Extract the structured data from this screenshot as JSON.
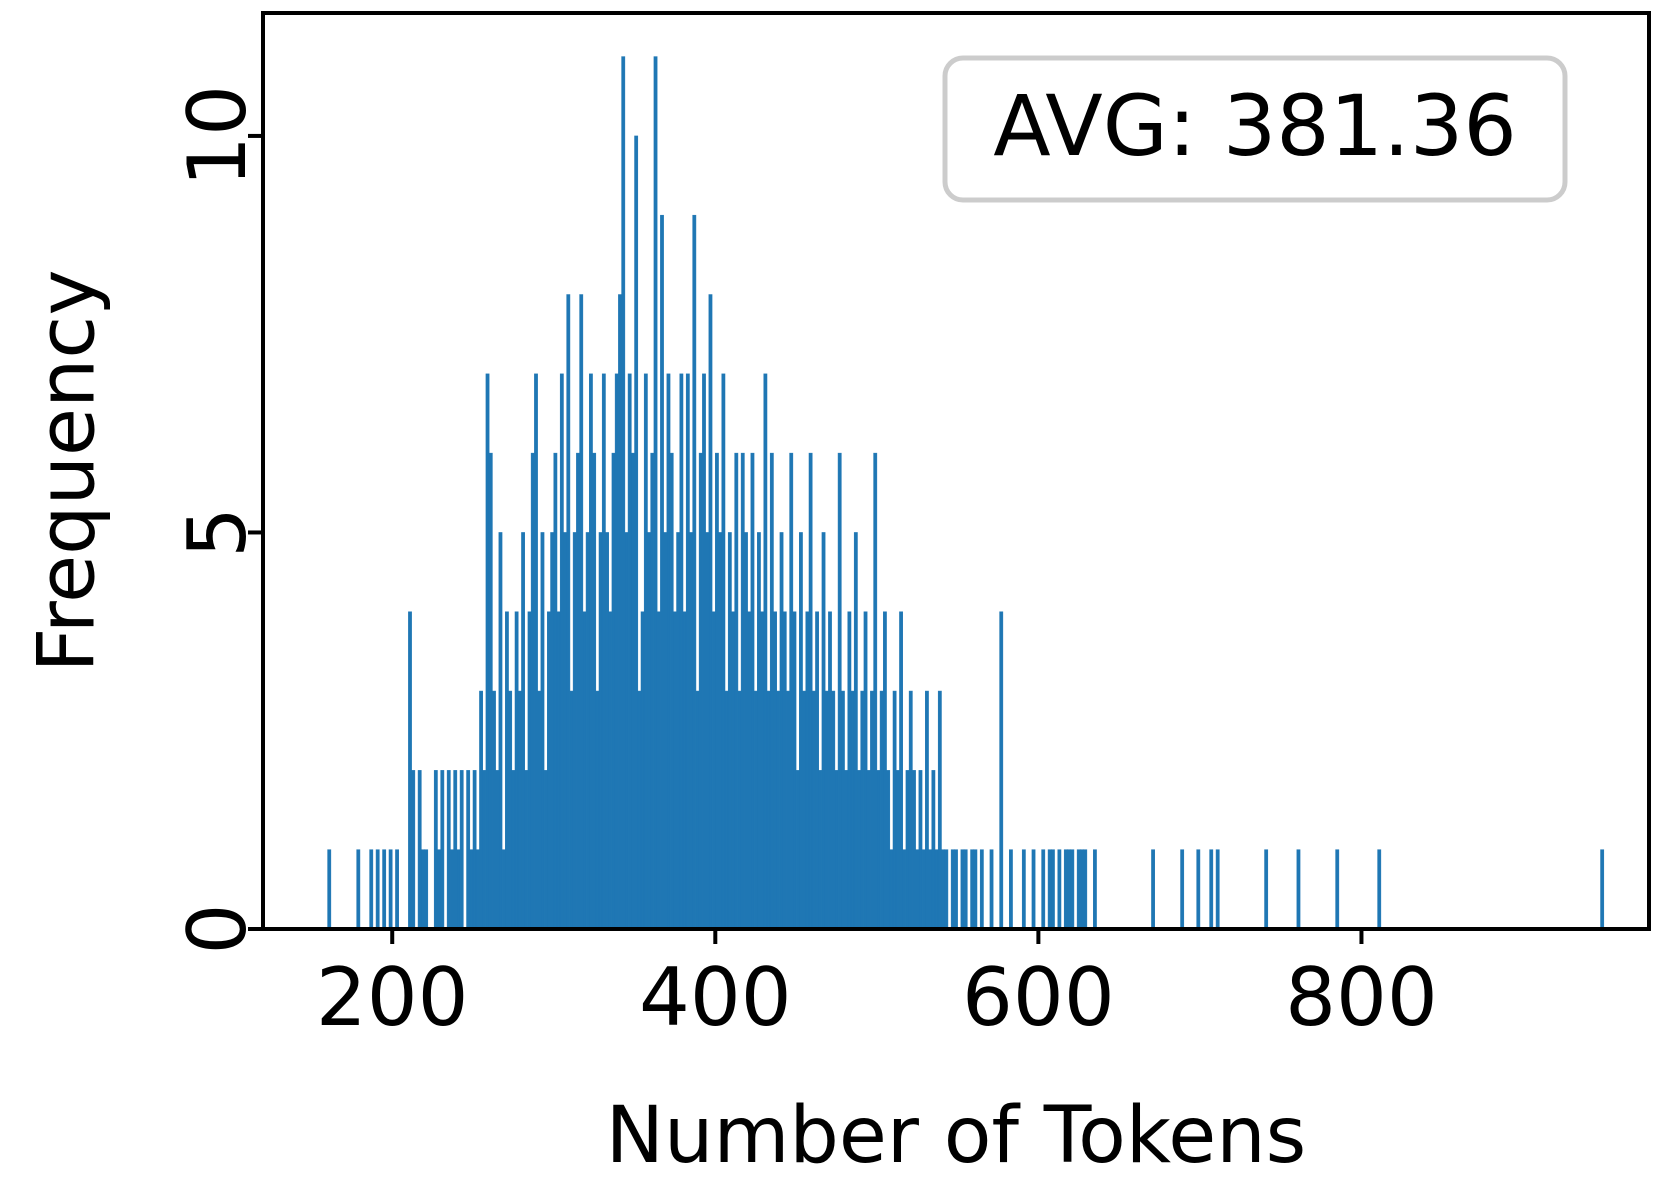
{
  "chart_data": {
    "type": "histogram",
    "xlabel": "Number of Tokens",
    "ylabel": "Frequency",
    "annotation": "AVG: 381.36",
    "color": "#1f77b4",
    "xlim": [
      120,
      978
    ],
    "ylim": [
      0,
      11.55
    ],
    "xticks": [
      200,
      400,
      600,
      800
    ],
    "yticks": [
      0,
      5,
      10
    ],
    "bins": [
      160,
      162,
      164,
      166,
      168,
      170,
      172,
      174,
      176,
      178,
      180,
      182,
      184,
      186,
      188,
      190,
      192,
      194,
      196,
      198,
      200,
      202,
      204,
      206,
      208,
      210,
      212,
      214,
      216,
      218,
      220,
      222,
      224,
      226,
      228,
      230,
      232,
      234,
      236,
      238,
      240,
      242,
      244,
      246,
      248,
      250,
      252,
      254,
      256,
      258,
      260,
      262,
      264,
      266,
      268,
      270,
      272,
      274,
      276,
      278,
      280,
      282,
      284,
      286,
      288,
      290,
      292,
      294,
      296,
      298,
      300,
      302,
      304,
      306,
      308,
      310,
      312,
      314,
      316,
      318,
      320,
      322,
      324,
      326,
      328,
      330,
      332,
      334,
      336,
      338,
      340,
      342,
      344,
      346,
      348,
      350,
      352,
      354,
      356,
      358,
      360,
      362,
      364,
      366,
      368,
      370,
      372,
      374,
      376,
      378,
      380,
      382,
      384,
      386,
      388,
      390,
      392,
      394,
      396,
      398,
      400,
      402,
      404,
      406,
      408,
      410,
      412,
      414,
      416,
      418,
      420,
      422,
      424,
      426,
      428,
      430,
      432,
      434,
      436,
      438,
      440,
      442,
      444,
      446,
      448,
      450,
      452,
      454,
      456,
      458,
      460,
      462,
      464,
      466,
      468,
      470,
      472,
      474,
      476,
      478,
      480,
      482,
      484,
      486,
      488,
      490,
      492,
      494,
      496,
      498,
      500,
      502,
      504,
      506,
      508,
      510,
      512,
      514,
      516,
      518,
      520,
      522,
      524,
      526,
      528,
      530,
      532,
      534,
      536,
      538,
      540,
      542,
      544,
      546,
      548,
      550,
      552,
      554,
      556,
      558,
      560,
      562,
      564,
      566,
      568,
      570,
      572,
      574,
      576,
      578,
      580,
      582,
      584,
      586,
      588,
      590,
      592,
      594,
      596,
      598,
      600,
      602,
      604,
      606,
      608,
      610,
      612,
      614,
      616,
      618,
      620,
      622,
      624,
      626,
      628,
      630,
      632,
      634,
      636,
      638,
      640,
      642,
      644,
      646,
      648,
      650,
      652,
      654,
      656,
      658,
      660,
      662,
      664,
      666,
      668,
      670,
      672,
      674,
      676,
      678,
      680,
      682,
      684,
      686,
      688,
      690,
      692,
      694,
      696,
      698,
      700,
      702,
      704,
      706,
      708,
      710,
      712,
      714,
      716,
      718,
      720,
      722,
      724,
      726,
      728,
      730,
      732,
      734,
      736,
      738,
      740,
      742,
      744,
      746,
      748,
      750,
      752,
      754,
      756,
      758,
      760,
      762,
      764,
      766,
      768,
      770,
      772,
      774,
      776,
      778,
      780,
      782,
      784,
      786,
      788,
      790,
      792,
      794,
      796,
      798,
      800,
      802,
      804,
      806,
      808,
      810,
      812,
      814,
      816,
      818,
      820,
      822,
      824,
      826,
      828,
      830,
      832,
      834,
      836,
      838,
      840,
      842,
      844,
      846,
      848,
      850,
      852,
      854,
      856,
      858,
      860,
      862,
      864,
      866,
      868,
      870,
      872,
      874,
      876,
      878,
      880,
      882,
      884,
      886,
      888,
      890,
      892,
      894,
      896,
      898,
      900,
      902,
      904,
      906,
      908,
      910,
      912,
      914,
      916,
      918,
      920,
      922,
      924,
      926,
      928,
      930,
      932,
      934,
      936,
      938,
      940,
      942,
      944,
      946,
      948,
      950
    ],
    "counts": [
      1,
      0,
      0,
      0,
      0,
      0,
      0,
      0,
      0,
      1,
      0,
      0,
      0,
      1,
      0,
      1,
      0,
      1,
      0,
      1,
      0,
      1,
      0,
      0,
      0,
      4,
      2,
      0,
      2,
      1,
      1,
      0,
      0,
      2,
      1,
      2,
      0,
      2,
      1,
      2,
      1,
      2,
      0,
      2,
      1,
      2,
      1,
      3,
      2,
      7,
      6,
      3,
      2,
      5,
      1,
      4,
      3,
      2,
      4,
      3,
      5,
      2,
      4,
      6,
      7,
      3,
      5,
      2,
      4,
      5,
      6,
      4,
      7,
      5,
      8,
      3,
      5,
      6,
      8,
      4,
      5,
      7,
      6,
      3,
      5,
      7,
      5,
      4,
      6,
      7,
      8,
      11,
      5,
      7,
      6,
      10,
      3,
      4,
      7,
      5,
      6,
      11,
      4,
      9,
      5,
      7,
      6,
      4,
      5,
      7,
      4,
      7,
      5,
      9,
      3,
      6,
      7,
      5,
      8,
      4,
      6,
      5,
      7,
      3,
      5,
      4,
      6,
      3,
      6,
      5,
      4,
      6,
      3,
      5,
      4,
      7,
      3,
      6,
      4,
      3,
      5,
      4,
      3,
      6,
      4,
      2,
      5,
      3,
      4,
      6,
      3,
      4,
      2,
      5,
      3,
      4,
      3,
      2,
      6,
      3,
      2,
      4,
      3,
      5,
      2,
      3,
      4,
      2,
      3,
      6,
      2,
      3,
      4,
      2,
      1,
      3,
      2,
      4,
      1,
      2,
      3,
      2,
      1,
      2,
      1,
      3,
      1,
      2,
      1,
      3,
      1,
      1,
      0,
      1,
      1,
      0,
      1,
      1,
      0,
      1,
      1,
      0,
      1,
      0,
      0,
      1,
      0,
      0,
      4,
      0,
      0,
      1,
      0,
      0,
      0,
      1,
      0,
      0,
      1,
      0,
      0,
      1,
      0,
      1,
      1,
      0,
      1,
      0,
      1,
      1,
      1,
      0,
      1,
      1,
      1,
      0,
      0,
      1,
      0,
      0,
      0,
      0,
      0,
      0,
      0,
      0,
      0,
      0,
      0,
      0,
      0,
      0,
      0,
      0,
      0,
      1,
      0,
      0,
      0,
      0,
      0,
      0,
      0,
      0,
      1,
      0,
      0,
      0,
      0,
      1,
      0,
      0,
      0,
      1,
      0,
      1,
      0,
      0,
      0,
      0,
      0,
      0,
      0,
      0,
      0,
      0,
      0,
      0,
      0,
      0,
      1,
      0,
      0,
      0,
      0,
      0,
      0,
      0,
      0,
      0,
      1,
      0,
      0,
      0,
      0,
      0,
      0,
      0,
      0,
      0,
      0,
      0,
      1,
      0,
      0,
      0,
      0,
      0,
      0,
      0,
      0,
      0,
      0,
      0,
      0,
      1,
      0,
      0,
      0,
      0,
      0,
      0,
      0,
      0,
      0,
      0,
      0,
      0,
      0,
      0,
      0,
      0,
      0,
      0,
      0,
      0,
      0,
      0,
      0,
      0,
      0,
      0,
      0,
      0,
      0,
      0,
      0,
      0,
      0,
      0,
      0,
      0,
      0,
      0,
      0,
      0,
      0,
      0,
      0,
      0,
      0,
      0,
      0,
      0,
      0,
      0,
      0,
      0,
      0,
      0,
      0,
      0,
      0,
      0,
      0,
      0,
      0,
      0,
      0,
      0,
      0,
      0,
      0,
      0,
      1
    ]
  }
}
